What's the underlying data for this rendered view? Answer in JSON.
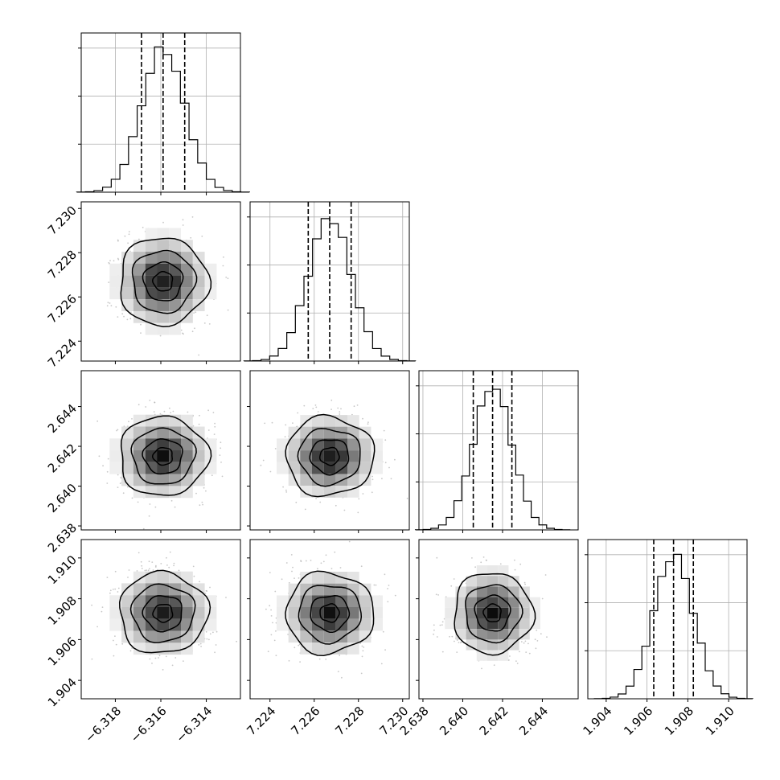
{
  "chart_data": {
    "type": "corner",
    "parameters": [
      {
        "index": 0,
        "median": -6.3159,
        "sigma": 0.00095,
        "q16": -6.31685,
        "q84": -6.31495,
        "axis_range": [
          -6.3195,
          -6.3125
        ],
        "ticks": [
          -6.318,
          -6.316,
          -6.314
        ],
        "tick_labels": [
          "−6.318",
          "−6.316",
          "−6.314"
        ]
      },
      {
        "index": 1,
        "median": 7.2267,
        "sigma": 0.00097,
        "q16": 7.22573,
        "q84": 7.22767,
        "axis_range": [
          7.2231,
          7.2303
        ],
        "ticks": [
          7.224,
          7.226,
          7.228,
          7.23
        ],
        "tick_labels": [
          "7.224",
          "7.226",
          "7.228",
          "7.230"
        ]
      },
      {
        "index": 2,
        "median": 2.6415,
        "sigma": 0.00097,
        "q16": 2.64053,
        "q84": 2.64247,
        "axis_range": [
          2.6378,
          2.6458
        ],
        "ticks": [
          2.638,
          2.64,
          2.642,
          2.644
        ],
        "tick_labels": [
          "2.638",
          "2.640",
          "2.642",
          "2.644"
        ]
      },
      {
        "index": 3,
        "median": 1.9073,
        "sigma": 0.00097,
        "q16": 1.90633,
        "q84": 1.90827,
        "axis_range": [
          1.9031,
          1.9109
        ],
        "ticks": [
          1.904,
          1.906,
          1.908,
          1.91
        ],
        "tick_labels": [
          "1.904",
          "1.906",
          "1.908",
          "1.910"
        ]
      }
    ],
    "diagonal": "1D histogram with dashed 16/50/84 percentile lines",
    "off_diagonal": "2D density with grey scatter points, shaded bins and contour levels",
    "grid": true
  }
}
